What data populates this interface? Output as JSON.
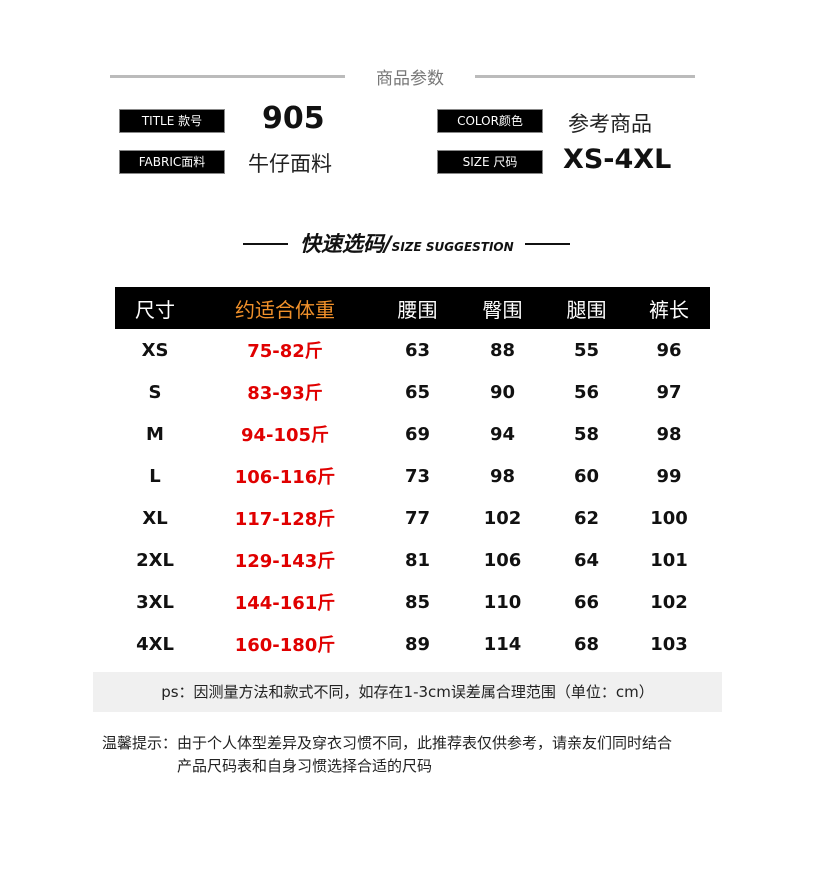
{
  "params": {
    "title": "商品参数",
    "items": [
      {
        "label": "TITLE 款号",
        "value": "905"
      },
      {
        "label": "COLOR颜色",
        "value": "参考商品"
      },
      {
        "label": "FABRIC面料",
        "value": "牛仔面料"
      },
      {
        "label": "SIZE 尺码",
        "value": "XS-4XL"
      }
    ]
  },
  "suggestion": {
    "title": "快速选码/",
    "subtitle": "SIZE SUGGESTION"
  },
  "table": {
    "headers": [
      "尺寸",
      "约适合体重",
      "腰围",
      "臀围",
      "腿围",
      "裤长"
    ],
    "rows": [
      [
        "XS",
        "75-82斤",
        "63",
        "88",
        "55",
        "96"
      ],
      [
        "S",
        "83-93斤",
        "65",
        "90",
        "56",
        "97"
      ],
      [
        "M",
        "94-105斤",
        "69",
        "94",
        "58",
        "98"
      ],
      [
        "L",
        "106-116斤",
        "73",
        "98",
        "60",
        "99"
      ],
      [
        "XL",
        "117-128斤",
        "77",
        "102",
        "62",
        "100"
      ],
      [
        "2XL",
        "129-143斤",
        "81",
        "106",
        "64",
        "101"
      ],
      [
        "3XL",
        "144-161斤",
        "85",
        "110",
        "66",
        "102"
      ],
      [
        "4XL",
        "160-180斤",
        "89",
        "114",
        "68",
        "103"
      ]
    ]
  },
  "note": "ps：因测量方法和款式不同，如存在1-3cm误差属合理范围（单位：cm）",
  "tip": {
    "label": "温馨提示：",
    "line1": "由于个人体型差异及穿衣习惯不同，此推荐表仅供参考，请亲友们同时结合",
    "line2": "产品尺码表和自身习惯选择合适的尺码"
  }
}
